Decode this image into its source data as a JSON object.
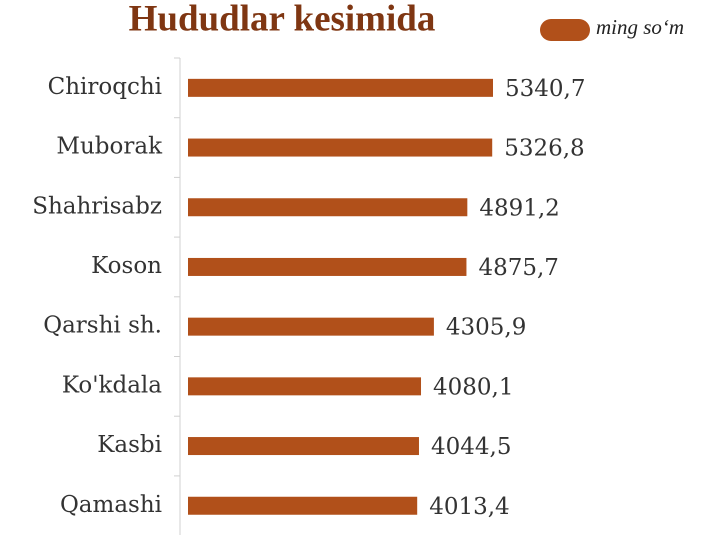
{
  "chart_data": {
    "type": "bar",
    "orientation": "horizontal",
    "title": "Hududlar kesimida",
    "categories": [
      "Chiroqchi",
      "Muborak",
      "Shahrisabz",
      "Koson",
      "Qarshi sh.",
      "Ko'kdala",
      "Kasbi",
      "Qamashi"
    ],
    "series": [
      {
        "name": "ming so‘m",
        "color": "#b1501a",
        "values": [
          5340.7,
          5326.8,
          4891.2,
          4875.7,
          4305.9,
          4080.1,
          4044.5,
          4013.4
        ],
        "value_labels": [
          "5340,7",
          "5326,8",
          "4891,2",
          "4875,7",
          "4305,9",
          "4080,1",
          "4044,5",
          "4013,4"
        ]
      }
    ],
    "legend": "top-right"
  }
}
